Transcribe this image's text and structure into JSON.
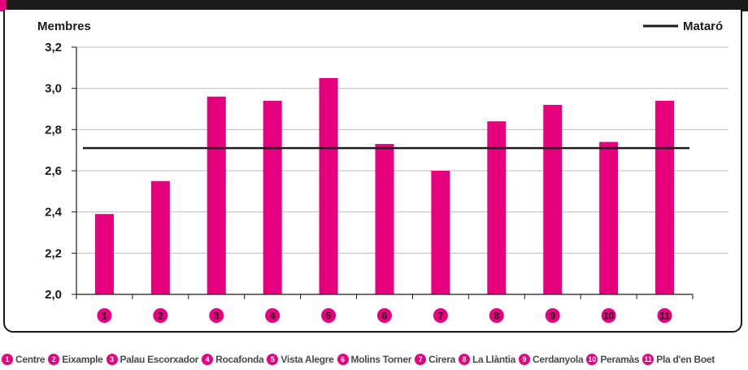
{
  "colors": {
    "bar": "#e6007e",
    "reference_line": "#1a1a1a",
    "badge": "#e6007e",
    "axis": "#1a1a1a",
    "grid": "#bdbdbd"
  },
  "chart_data": {
    "type": "bar",
    "categories": [
      "1",
      "2",
      "3",
      "4",
      "5",
      "6",
      "7",
      "8",
      "9",
      "10",
      "11"
    ],
    "category_names": [
      "Centre",
      "Eixample",
      "Palau Escorxador",
      "Rocafonda",
      "Vista Alegre",
      "Molins Torner",
      "Cirera",
      "La Llàntia",
      "Cerdanyola",
      "Peramàs",
      "Pla d'en Boet"
    ],
    "values": [
      2.39,
      2.55,
      2.96,
      2.94,
      3.05,
      2.73,
      2.6,
      2.84,
      2.92,
      2.74,
      2.94
    ],
    "reference_line": {
      "name": "Mataró",
      "value": 2.71
    },
    "ylabel": "Membres",
    "ylim": [
      2.0,
      3.2
    ],
    "yticks": [
      "2,0",
      "2,2",
      "2,4",
      "2,6",
      "2,8",
      "3,0",
      "3,2"
    ],
    "ytick_values": [
      2.0,
      2.2,
      2.4,
      2.6,
      2.8,
      3.0,
      3.2
    ],
    "grid": true,
    "legend_position": "top-right"
  }
}
